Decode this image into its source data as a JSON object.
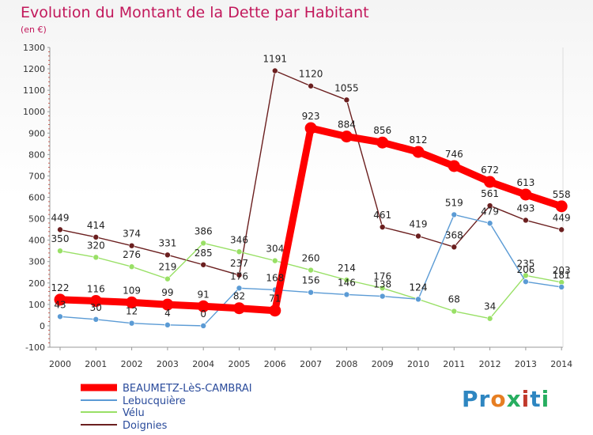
{
  "title": "Evolution du Montant de la Dette par Habitant",
  "subtitle": "(en €)",
  "logo": "Proxiti",
  "chart_data": {
    "type": "line",
    "title": "Evolution du Montant de la Dette par Habitant",
    "subtitle": "(en €)",
    "x": [
      "2000",
      "2001",
      "2002",
      "2003",
      "2004",
      "2005",
      "2006",
      "2007",
      "2008",
      "2009",
      "2010",
      "2011",
      "2012",
      "2013",
      "2014"
    ],
    "ylim": [
      -100,
      1300
    ],
    "yticks": [
      -100,
      0,
      100,
      200,
      300,
      400,
      500,
      600,
      700,
      800,
      900,
      1000,
      1100,
      1200,
      1300
    ],
    "grid": false,
    "legend_position": "bottom-left",
    "series": [
      {
        "name": "BEAUMETZ-LèS-CAMBRAI",
        "color": "#ff0000",
        "values": [
          122,
          116,
          109,
          99,
          91,
          82,
          71,
          923,
          884,
          856,
          812,
          746,
          672,
          613,
          558
        ]
      },
      {
        "name": "Lebucquière",
        "color": "#5b9bd5",
        "values": [
          43,
          30,
          12,
          4,
          0,
          176,
          168,
          156,
          146,
          138,
          124,
          519,
          479,
          206,
          181
        ]
      },
      {
        "name": "Vélu",
        "color": "#99e066",
        "values": [
          350,
          320,
          276,
          219,
          386,
          346,
          304,
          260,
          214,
          176,
          124,
          68,
          34,
          235,
          203
        ]
      },
      {
        "name": "Doignies",
        "color": "#6b1f1f",
        "values": [
          449,
          414,
          374,
          331,
          285,
          237,
          1191,
          1120,
          1055,
          461,
          419,
          368,
          561,
          493,
          449
        ]
      }
    ]
  }
}
